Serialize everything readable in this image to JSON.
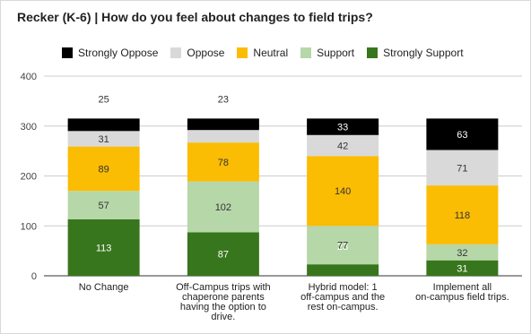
{
  "chart_data": {
    "type": "bar",
    "stacked": true,
    "title": "Recker (K-6) | How do you feel about changes to field trips?",
    "xlabel": "",
    "ylabel": "",
    "ylim": [
      0,
      400
    ],
    "yticks": [
      "0",
      "100",
      "200",
      "300",
      "400"
    ],
    "grid": true,
    "legend_position": "top",
    "categories": [
      [
        "No Change"
      ],
      [
        "Off-Campus trips with",
        "chaperone parents",
        "having the option to",
        "drive."
      ],
      [
        "Hybrid model: 1",
        "off-campus and the",
        "rest on-campus."
      ],
      [
        "Implement all",
        "on-campus field trips."
      ]
    ],
    "series": [
      {
        "name": "Strongly Support",
        "color": "#38761d",
        "label_color": "#ffffff",
        "values": [
          113,
          87,
          23,
          31
        ]
      },
      {
        "name": "Support",
        "color": "#b6d7a8",
        "label_color": "#333333",
        "values": [
          57,
          102,
          77,
          32
        ]
      },
      {
        "name": "Neutral",
        "color": "#fbbc04",
        "label_color": "#333333",
        "values": [
          89,
          78,
          140,
          118
        ]
      },
      {
        "name": "Oppose",
        "color": "#d9d9d9",
        "label_color": "#333333",
        "values": [
          31,
          25,
          42,
          71
        ]
      },
      {
        "name": "Strongly Oppose",
        "color": "#000000",
        "label_color": "#ffffff",
        "values": [
          25,
          23,
          33,
          63
        ]
      }
    ]
  },
  "legend_order": [
    "Strongly Oppose",
    "Oppose",
    "Neutral",
    "Support",
    "Strongly Support"
  ]
}
